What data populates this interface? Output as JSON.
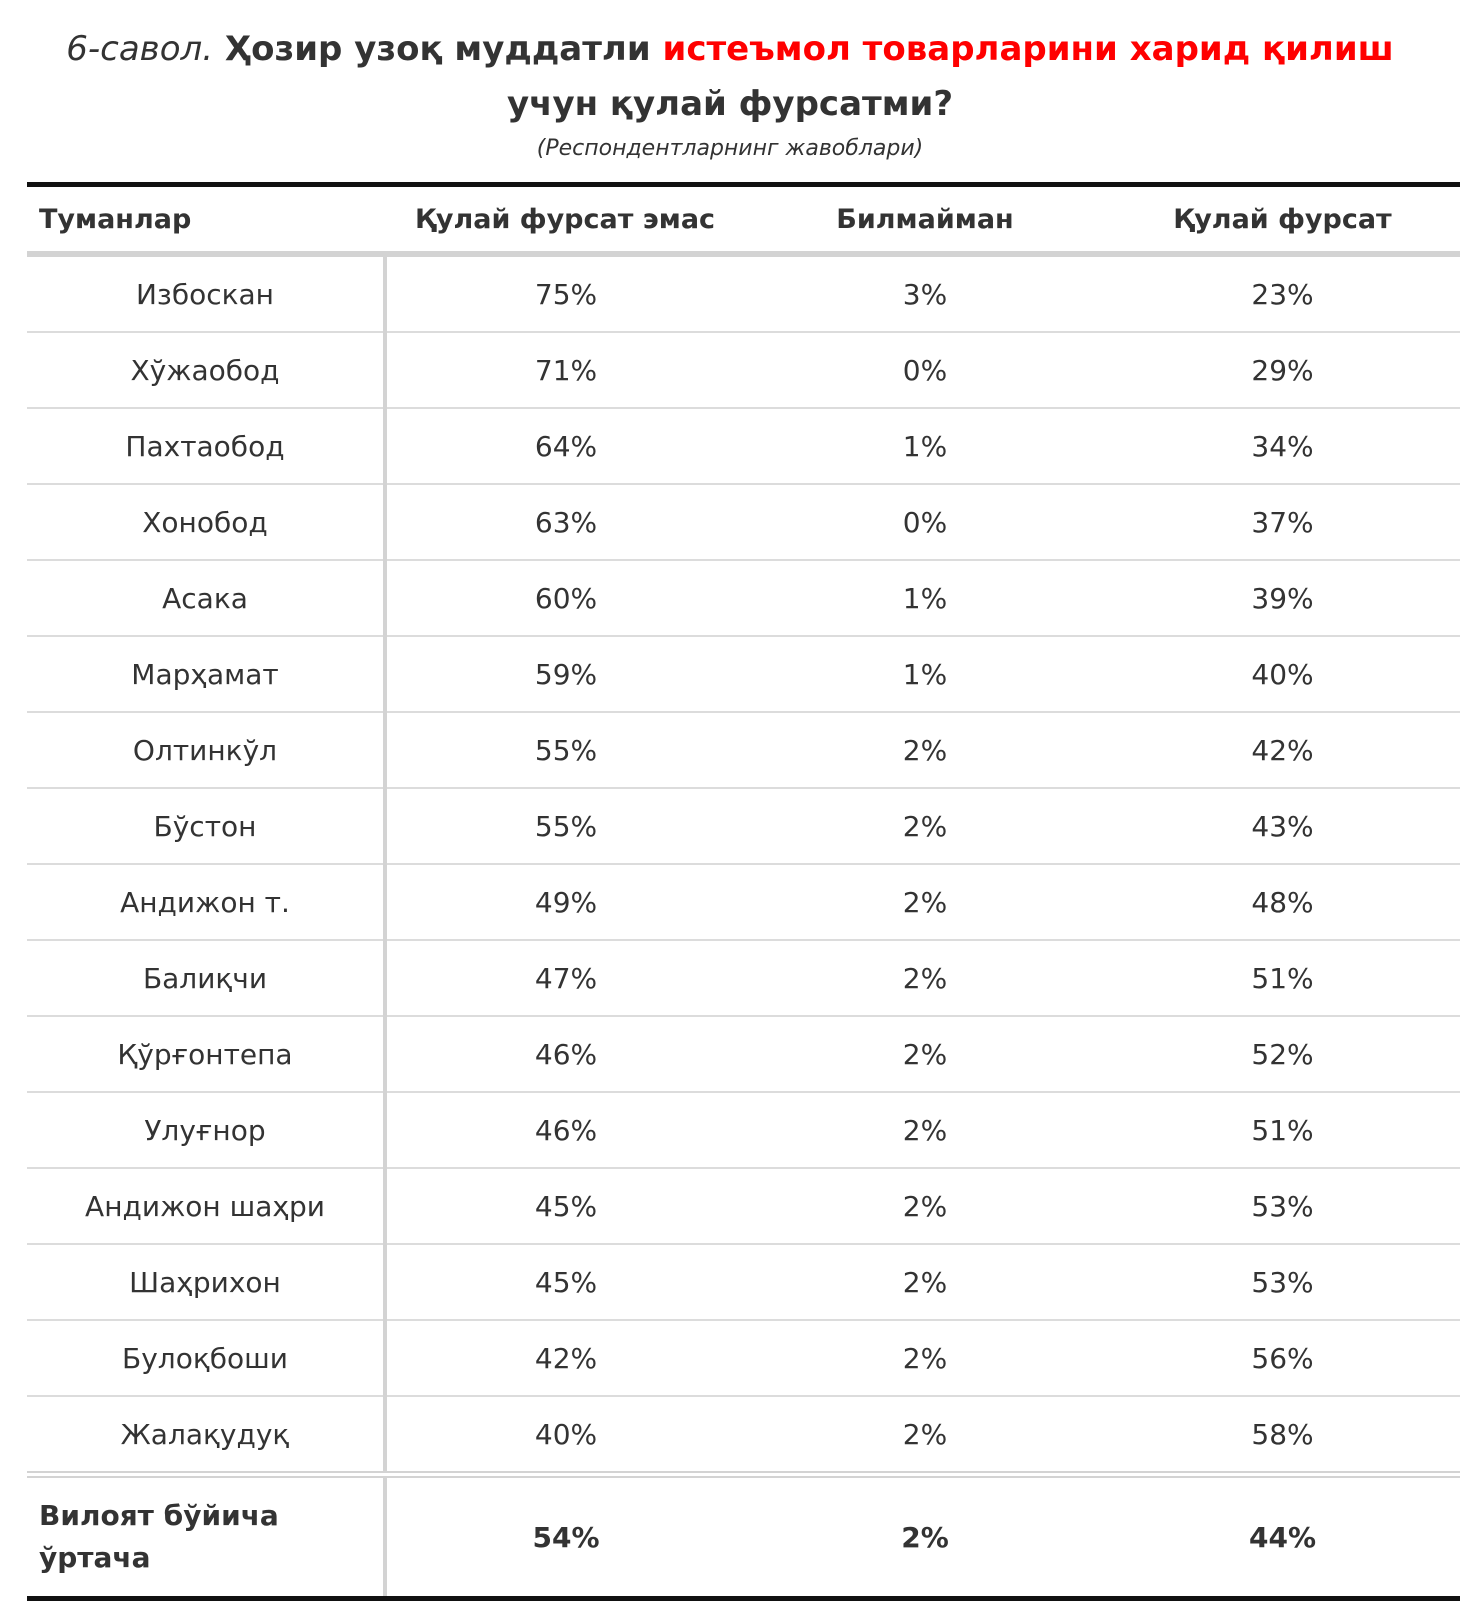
{
  "header": {
    "title_prefix": "6-савол.",
    "title_part1": "Ҳозир узоқ муддатли",
    "title_highlight": "истеъмол товарларини харид қилиш",
    "title_part2": "учун қулай фурсатми?",
    "subtitle": "(Респондентларнинг жавоблари)",
    "accent_color": "#ff0000"
  },
  "table": {
    "columns": [
      "Туманлар",
      "Қулай фурсат эмас",
      "Билмайман",
      "Қулай фурсат"
    ],
    "rows": [
      {
        "district": "Избоскан",
        "not_good": "75%",
        "dont_know": "3%",
        "good": "23%"
      },
      {
        "district": "Хўжаобод",
        "not_good": "71%",
        "dont_know": "0%",
        "good": "29%"
      },
      {
        "district": "Пахтаобод",
        "not_good": "64%",
        "dont_know": "1%",
        "good": "34%"
      },
      {
        "district": "Хонобод",
        "not_good": "63%",
        "dont_know": "0%",
        "good": "37%"
      },
      {
        "district": "Асака",
        "not_good": "60%",
        "dont_know": "1%",
        "good": "39%"
      },
      {
        "district": "Марҳамат",
        "not_good": "59%",
        "dont_know": "1%",
        "good": "40%"
      },
      {
        "district": "Олтинкўл",
        "not_good": "55%",
        "dont_know": "2%",
        "good": "42%"
      },
      {
        "district": "Бўстон",
        "not_good": "55%",
        "dont_know": "2%",
        "good": "43%"
      },
      {
        "district": "Андижон т.",
        "not_good": "49%",
        "dont_know": "2%",
        "good": "48%"
      },
      {
        "district": "Балиқчи",
        "not_good": "47%",
        "dont_know": "2%",
        "good": "51%"
      },
      {
        "district": "Қўрғонтепа",
        "not_good": "46%",
        "dont_know": "2%",
        "good": "52%"
      },
      {
        "district": "Улуғнор",
        "not_good": "46%",
        "dont_know": "2%",
        "good": "51%"
      },
      {
        "district": "Андижон шаҳри",
        "not_good": "45%",
        "dont_know": "2%",
        "good": "53%"
      },
      {
        "district": "Шаҳрихон",
        "not_good": "45%",
        "dont_know": "2%",
        "good": "53%"
      },
      {
        "district": "Булоқбоши",
        "not_good": "42%",
        "dont_know": "2%",
        "good": "56%"
      },
      {
        "district": "Жалақудуқ",
        "not_good": "40%",
        "dont_know": "2%",
        "good": "58%"
      }
    ],
    "total": {
      "label": "Вилоят бўйича ўртача",
      "not_good": "54%",
      "dont_know": "2%",
      "good": "44%"
    }
  }
}
